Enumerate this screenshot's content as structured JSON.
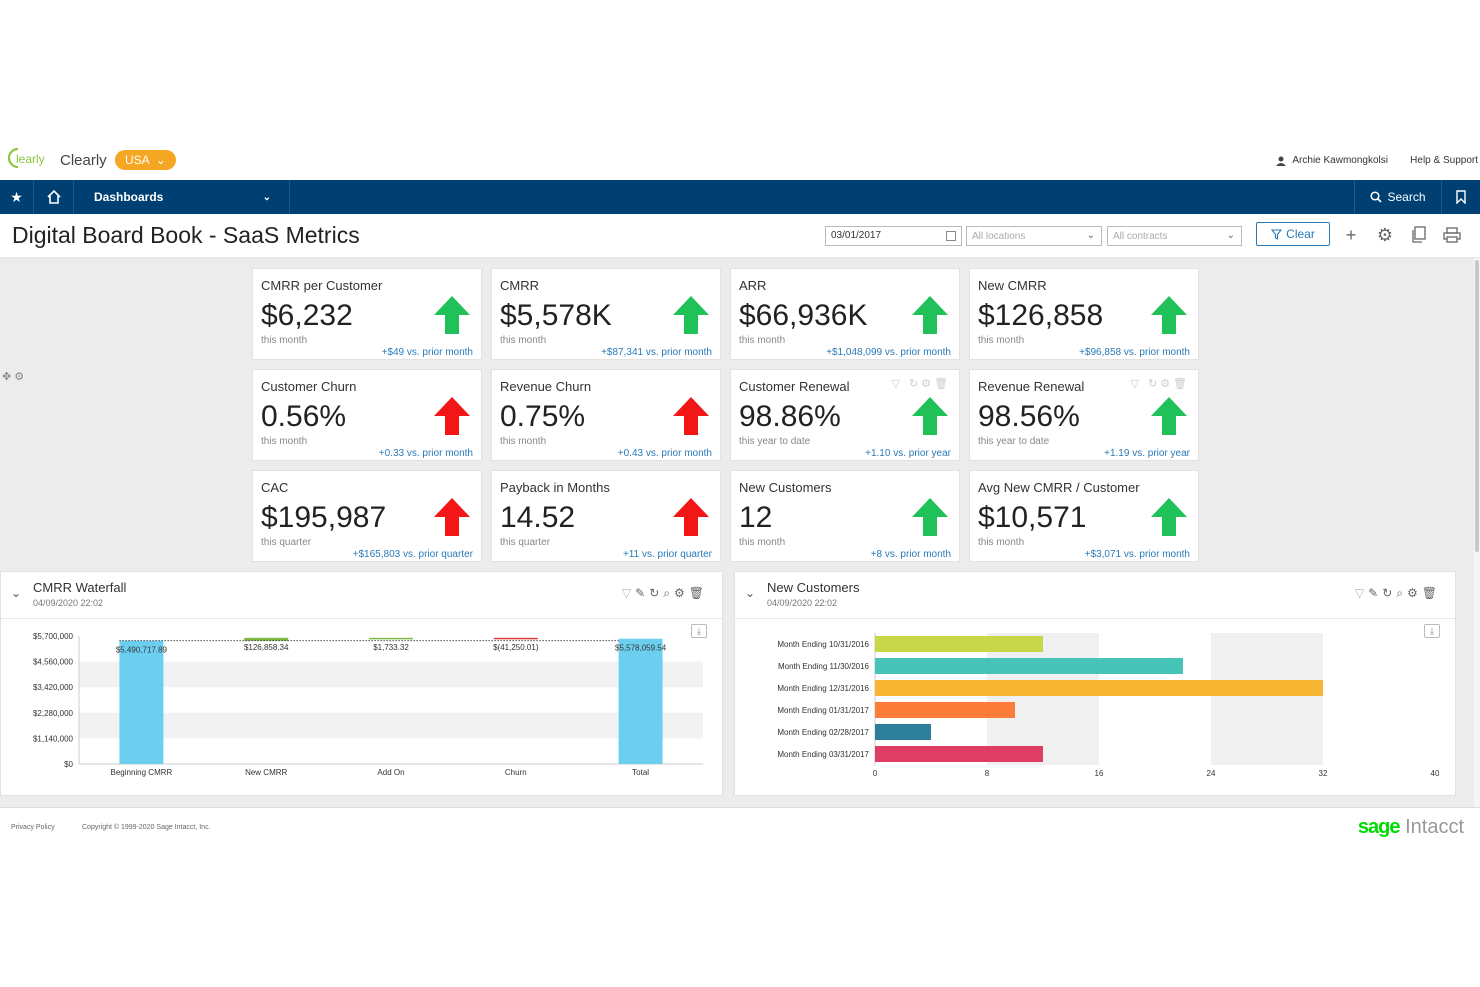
{
  "brand": {
    "logo_text": "learly",
    "company": "Clearly",
    "entity": "USA"
  },
  "user": {
    "name": "Archie Kawmongkolsi",
    "help": "Help & Support"
  },
  "nav": {
    "dashboards": "Dashboards",
    "search": "Search"
  },
  "page": {
    "title": "Digital Board Book - SaaS Metrics"
  },
  "filters": {
    "date": "03/01/2017",
    "locations_placeholder": "All locations",
    "contracts_placeholder": "All contracts",
    "clear": "Clear"
  },
  "colors": {
    "up_green": "#21c15a",
    "up_red": "#f21616",
    "nav_blue": "#003f72",
    "link_blue": "#2a7ab8"
  },
  "kpis": [
    {
      "title": "CMRR per Customer",
      "value": "$6,232",
      "period": "this month",
      "delta": "+$49 vs. prior month",
      "arrow": "up",
      "color": "green"
    },
    {
      "title": "CMRR",
      "value": "$5,578K",
      "period": "this month",
      "delta": "+$87,341 vs. prior month",
      "arrow": "up",
      "color": "green"
    },
    {
      "title": "ARR",
      "value": "$66,936K",
      "period": "this month",
      "delta": "+$1,048,099 vs. prior month",
      "arrow": "up",
      "color": "green"
    },
    {
      "title": "New CMRR",
      "value": "$126,858",
      "period": "this month",
      "delta": "+$96,858 vs. prior month",
      "arrow": "up",
      "color": "green"
    },
    {
      "title": "Customer Churn",
      "value": "0.56%",
      "period": "this month",
      "delta": "+0.33 vs. prior month",
      "arrow": "up",
      "color": "red"
    },
    {
      "title": "Revenue Churn",
      "value": "0.75%",
      "period": "this month",
      "delta": "+0.43 vs. prior month",
      "arrow": "up",
      "color": "red"
    },
    {
      "title": "Customer Renewal",
      "value": "98.86%",
      "period": "this year to date",
      "delta": "+1.10 vs. prior year",
      "arrow": "up",
      "color": "green"
    },
    {
      "title": "Revenue Renewal",
      "value": "98.56%",
      "period": "this year to date",
      "delta": "+1.19 vs. prior year",
      "arrow": "up",
      "color": "green"
    },
    {
      "title": "CAC",
      "value": "$195,987",
      "period": "this quarter",
      "delta": "+$165,803 vs. prior quarter",
      "arrow": "up",
      "color": "red"
    },
    {
      "title": "Payback in Months",
      "value": "14.52",
      "period": "this quarter",
      "delta": "+11 vs. prior quarter",
      "arrow": "up",
      "color": "red"
    },
    {
      "title": "New Customers",
      "value": "12",
      "period": "this month",
      "delta": "+8 vs. prior month",
      "arrow": "up",
      "color": "green"
    },
    {
      "title": "Avg New CMRR / Customer",
      "value": "$10,571",
      "period": "this month",
      "delta": "+$3,071 vs. prior month",
      "arrow": "up",
      "color": "green"
    }
  ],
  "waterfall_panel": {
    "title": "CMRR Waterfall",
    "timestamp": "04/09/2020 22:02"
  },
  "customers_panel": {
    "title": "New Customers",
    "timestamp": "04/09/2020 22:02"
  },
  "chart_data": [
    {
      "type": "bar",
      "subtype": "waterfall",
      "title": "CMRR Waterfall",
      "categories": [
        "Beginning CMRR",
        "New CMRR",
        "Add On",
        "Churn",
        "Total"
      ],
      "values": [
        5490717.89,
        126858.34,
        1733.32,
        -41250.01,
        5578059.54
      ],
      "data_labels": [
        "$5,490,717.89",
        "$126,858.34",
        "$1,733.32",
        "$(41,250.01)",
        "$5,578,059.54"
      ],
      "yticks": [
        "$0",
        "$1,140,000",
        "$2,280,000",
        "$3,420,000",
        "$4,560,000",
        "$5,700,000"
      ],
      "ylim": [
        0,
        5700000
      ],
      "colors": {
        "total": "#6dcff0",
        "increase": "#7fb843",
        "decrease": "#e03c3c"
      }
    },
    {
      "type": "bar",
      "orientation": "horizontal",
      "title": "New Customers",
      "categories": [
        "Month Ending 10/31/2016",
        "Month Ending 11/30/2016",
        "Month Ending 12/31/2016",
        "Month Ending 01/31/2017",
        "Month Ending 02/28/2017",
        "Month Ending 03/31/2017"
      ],
      "values": [
        12,
        22,
        32,
        10,
        4,
        12
      ],
      "colors": [
        "#c6d84a",
        "#46c4b8",
        "#f7b733",
        "#fd7c39",
        "#2d7f9b",
        "#de3e63"
      ],
      "xticks": [
        "0",
        "8",
        "16",
        "24",
        "32",
        "40"
      ],
      "xlim": [
        0,
        40
      ]
    }
  ],
  "footer": {
    "privacy": "Privacy Policy",
    "copyright": "Copyright © 1999-2020 Sage Intacct, Inc.",
    "brand_sage": "sage",
    "brand_intacct": "Intacct"
  }
}
